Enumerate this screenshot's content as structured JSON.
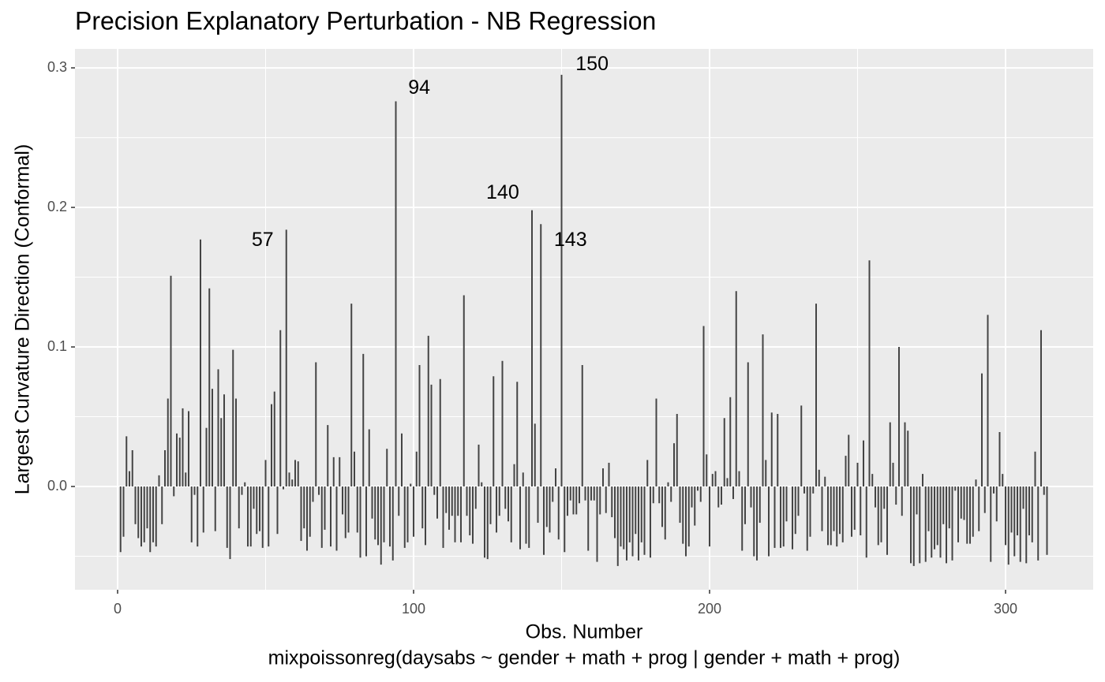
{
  "chart_data": {
    "type": "spike",
    "title": "Precision Explanatory Perturbation - NB Regression",
    "xlabel": "Obs. Number",
    "caption": "mixpoissonreg(daysabs ~ gender + math + prog | gender + math + prog)",
    "ylabel": "Largest Curvature Direction (Conformal)",
    "color": "#444444",
    "grid": true,
    "xlim": [
      -14.4,
      329.6
    ],
    "ylim": [
      -0.074,
      0.3136
    ],
    "xticks": [
      0,
      100,
      200,
      300
    ],
    "yticks": [
      {
        "value": 0,
        "label": "0.0"
      },
      0.1,
      0.2,
      0.3
    ],
    "xminor": [
      50,
      150,
      250
    ],
    "yminor": [
      -0.05,
      0.05,
      0.15,
      0.25
    ],
    "annotations": [
      {
        "text": "57",
        "x": 49,
        "y": 0.176
      },
      {
        "text": "94",
        "x": 101.9,
        "y": 0.285
      },
      {
        "text": "140",
        "x": 130.1,
        "y": 0.21
      },
      {
        "text": "143",
        "x": 153,
        "y": 0.176
      },
      {
        "text": "150",
        "x": 160.3,
        "y": 0.302
      }
    ],
    "x": [
      1,
      2,
      3,
      4,
      5,
      6,
      7,
      8,
      9,
      10,
      11,
      12,
      13,
      14,
      15,
      16,
      17,
      18,
      19,
      20,
      21,
      22,
      23,
      24,
      25,
      26,
      27,
      28,
      29,
      30,
      31,
      32,
      33,
      34,
      35,
      36,
      37,
      38,
      39,
      40,
      41,
      42,
      43,
      44,
      45,
      46,
      47,
      48,
      49,
      50,
      51,
      52,
      53,
      54,
      55,
      56,
      57,
      58,
      59,
      60,
      61,
      62,
      63,
      64,
      65,
      66,
      67,
      68,
      69,
      70,
      71,
      72,
      73,
      74,
      75,
      76,
      77,
      78,
      79,
      80,
      81,
      82,
      83,
      84,
      85,
      86,
      87,
      88,
      89,
      90,
      91,
      92,
      93,
      94,
      95,
      96,
      97,
      98,
      99,
      100,
      101,
      102,
      103,
      104,
      105,
      106,
      107,
      108,
      109,
      110,
      111,
      112,
      113,
      114,
      115,
      116,
      117,
      118,
      119,
      120,
      121,
      122,
      123,
      124,
      125,
      126,
      127,
      128,
      129,
      130,
      131,
      132,
      133,
      134,
      135,
      136,
      137,
      138,
      139,
      140,
      141,
      142,
      143,
      144,
      145,
      146,
      147,
      148,
      149,
      150,
      151,
      152,
      153,
      154,
      155,
      156,
      157,
      158,
      159,
      160,
      161,
      162,
      163,
      164,
      165,
      166,
      167,
      168,
      169,
      170,
      171,
      172,
      173,
      174,
      175,
      176,
      177,
      178,
      179,
      180,
      181,
      182,
      183,
      184,
      185,
      186,
      187,
      188,
      189,
      190,
      191,
      192,
      193,
      194,
      195,
      196,
      197,
      198,
      199,
      200,
      201,
      202,
      203,
      204,
      205,
      206,
      207,
      208,
      209,
      210,
      211,
      212,
      213,
      214,
      215,
      216,
      217,
      218,
      219,
      220,
      221,
      222,
      223,
      224,
      225,
      226,
      227,
      228,
      229,
      230,
      231,
      232,
      233,
      234,
      235,
      236,
      237,
      238,
      239,
      240,
      241,
      242,
      243,
      244,
      245,
      246,
      247,
      248,
      249,
      250,
      251,
      252,
      253,
      254,
      255,
      256,
      257,
      258,
      259,
      260,
      261,
      262,
      263,
      264,
      265,
      266,
      267,
      268,
      269,
      270,
      271,
      272,
      273,
      274,
      275,
      276,
      277,
      278,
      279,
      280,
      281,
      282,
      283,
      284,
      285,
      286,
      287,
      288,
      289,
      290,
      291,
      292,
      293,
      294,
      295,
      296,
      297,
      298,
      299,
      300,
      301,
      302,
      303,
      304,
      305,
      306,
      307,
      308,
      309,
      310,
      311,
      312,
      313,
      314
    ],
    "values": [
      -0.047,
      -0.036,
      0.036,
      0.011,
      0.026,
      -0.027,
      -0.037,
      -0.043,
      -0.04,
      -0.03,
      -0.047,
      -0.04,
      -0.043,
      0.008,
      -0.027,
      0.026,
      0.063,
      0.151,
      -0.007,
      0.038,
      0.035,
      0.056,
      0.01,
      0.054,
      -0.04,
      -0.006,
      -0.043,
      0.177,
      -0.033,
      0.042,
      0.142,
      0.07,
      -0.032,
      0.084,
      0.049,
      0.066,
      -0.044,
      -0.052,
      0.098,
      0.063,
      -0.03,
      -0.006,
      0.003,
      -0.043,
      -0.043,
      -0.016,
      -0.034,
      -0.032,
      -0.044,
      0.019,
      -0.043,
      0.059,
      0.068,
      -0.034,
      0.112,
      -0.002,
      0.184,
      0.01,
      0.005,
      0.019,
      0.018,
      -0.039,
      -0.03,
      -0.046,
      -0.036,
      -0.011,
      0.089,
      -0.006,
      -0.044,
      -0.031,
      0.044,
      -0.043,
      0.021,
      -0.046,
      0.021,
      -0.02,
      -0.037,
      -0.033,
      0.131,
      0.025,
      -0.033,
      -0.051,
      0.095,
      -0.05,
      0.041,
      -0.023,
      -0.038,
      -0.042,
      -0.056,
      -0.04,
      0.027,
      -0.043,
      -0.053,
      0.276,
      -0.021,
      0.038,
      -0.044,
      -0.04,
      0.002,
      -0.036,
      0.025,
      0.087,
      -0.03,
      -0.042,
      0.108,
      0.073,
      -0.006,
      -0.023,
      0.077,
      -0.044,
      -0.019,
      -0.031,
      -0.021,
      -0.04,
      -0.021,
      -0.04,
      0.137,
      -0.021,
      -0.035,
      -0.041,
      -0.016,
      0.03,
      0.003,
      -0.051,
      -0.052,
      -0.027,
      0.079,
      -0.033,
      -0.021,
      0.09,
      -0.016,
      -0.025,
      -0.04,
      0.016,
      0.075,
      -0.045,
      0.01,
      -0.041,
      -0.044,
      0.198,
      0.045,
      -0.026,
      0.188,
      -0.049,
      -0.029,
      -0.033,
      -0.011,
      0.013,
      -0.038,
      0.295,
      -0.047,
      -0.021,
      -0.01,
      -0.02,
      -0.02,
      -0.012,
      0.087,
      -0.01,
      -0.046,
      -0.01,
      -0.01,
      -0.054,
      -0.02,
      0.013,
      -0.019,
      0.017,
      -0.022,
      -0.037,
      -0.057,
      -0.043,
      -0.045,
      -0.053,
      -0.04,
      -0.05,
      -0.034,
      -0.053,
      -0.04,
      -0.049,
      0.019,
      -0.051,
      -0.012,
      0.063,
      -0.012,
      -0.029,
      -0.038,
      0.003,
      -0.011,
      0.031,
      0.052,
      -0.026,
      -0.041,
      -0.05,
      -0.043,
      -0.015,
      -0.028,
      -0.003,
      -0.011,
      0.115,
      0.023,
      -0.043,
      0.009,
      0.011,
      -0.015,
      -0.013,
      0.049,
      0.006,
      0.064,
      -0.009,
      0.14,
      0.011,
      -0.046,
      -0.027,
      0.089,
      -0.015,
      -0.05,
      -0.053,
      -0.026,
      0.109,
      0.019,
      -0.05,
      0.053,
      -0.044,
      0.052,
      -0.044,
      -0.043,
      -0.025,
      0,
      -0.045,
      -0.034,
      -0.021,
      0.058,
      -0.005,
      -0.046,
      -0.036,
      -0.005,
      0.131,
      0.012,
      -0.032,
      0.007,
      -0.042,
      -0.042,
      -0.032,
      -0.043,
      -0.034,
      -0.04,
      0.022,
      0.037,
      -0.036,
      -0.031,
      0.017,
      -0.035,
      0.033,
      -0.051,
      0.162,
      0.009,
      -0.015,
      -0.042,
      -0.04,
      -0.016,
      -0.049,
      0.046,
      0.017,
      -0.013,
      0.1,
      -0.021,
      0.046,
      0.04,
      -0.055,
      -0.057,
      -0.02,
      -0.055,
      0.009,
      -0.054,
      -0.032,
      -0.051,
      -0.045,
      -0.042,
      -0.051,
      -0.027,
      -0.055,
      -0.03,
      -0.053,
      -0.003,
      -0.04,
      -0.023,
      -0.024,
      -0.041,
      -0.041,
      -0.036,
      0.005,
      -0.032,
      0.081,
      -0.019,
      0.123,
      -0.054,
      -0.005,
      -0.025,
      0.039,
      0.009,
      -0.042,
      -0.056,
      -0.033,
      -0.05,
      -0.035,
      -0.054,
      -0.016,
      -0.055,
      -0.035,
      -0.04,
      0.025,
      -0.053,
      0.112,
      -0.006,
      -0.049
    ]
  }
}
